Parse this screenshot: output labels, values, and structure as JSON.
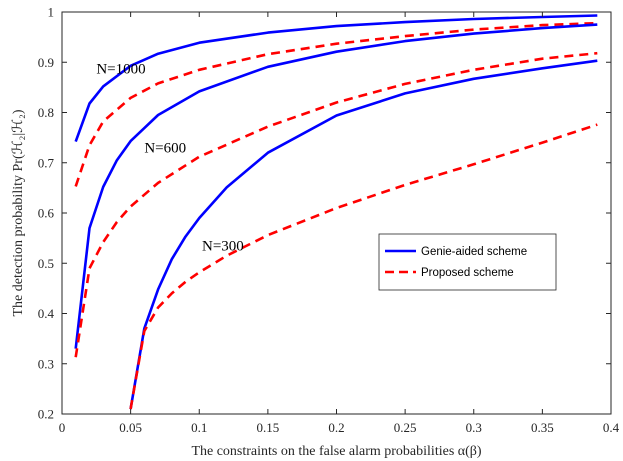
{
  "chart_data": {
    "type": "line",
    "xlabel": "The constraints on the false alarm probabilities α(β)",
    "ylabel": "The detection probability Pr(ℋ₂|ℋ₂)",
    "xlim": [
      0,
      0.4
    ],
    "ylim": [
      0.2,
      1.0
    ],
    "xticks": [
      0,
      0.05,
      0.1,
      0.15,
      0.2,
      0.25,
      0.3,
      0.35,
      0.4
    ],
    "xtick_labels": [
      "0",
      "0.05",
      "0.1",
      "0.15",
      "0.2",
      "0.25",
      "0.3",
      "0.35",
      "0.4"
    ],
    "yticks": [
      0.2,
      0.3,
      0.4,
      0.5,
      0.6,
      0.7,
      0.8,
      0.9,
      1.0
    ],
    "ytick_labels": [
      "0.2",
      "0.3",
      "0.4",
      "0.5",
      "0.6",
      "0.7",
      "0.8",
      "0.9",
      "1"
    ],
    "grid": false,
    "legend_position": "center-right",
    "legend": [
      {
        "label": "Genie-aided scheme",
        "color": "#0000ff",
        "style": "solid"
      },
      {
        "label": "Proposed scheme",
        "color": "#ff0000",
        "style": "dashed"
      }
    ],
    "annotations": [
      {
        "text": "N=1000",
        "x": 0.025,
        "y": 0.878
      },
      {
        "text": "N=600",
        "x": 0.06,
        "y": 0.72
      },
      {
        "text": "N=300",
        "x": 0.102,
        "y": 0.525
      }
    ],
    "series": [
      {
        "group": "N=1000",
        "scheme": "genie",
        "color": "#0000ff",
        "dash": false,
        "x": [
          0.01,
          0.02,
          0.03,
          0.05,
          0.07,
          0.1,
          0.15,
          0.2,
          0.25,
          0.3,
          0.35,
          0.39
        ],
        "y": [
          0.742,
          0.818,
          0.852,
          0.893,
          0.917,
          0.939,
          0.959,
          0.972,
          0.98,
          0.986,
          0.99,
          0.993
        ]
      },
      {
        "group": "N=1000",
        "scheme": "proposed",
        "color": "#ff0000",
        "dash": true,
        "x": [
          0.01,
          0.02,
          0.03,
          0.05,
          0.07,
          0.1,
          0.15,
          0.2,
          0.25,
          0.3,
          0.35,
          0.39
        ],
        "y": [
          0.653,
          0.735,
          0.782,
          0.829,
          0.858,
          0.885,
          0.916,
          0.937,
          0.952,
          0.965,
          0.974,
          0.978
        ]
      },
      {
        "group": "N=600",
        "scheme": "genie",
        "color": "#0000ff",
        "dash": false,
        "x": [
          0.01,
          0.02,
          0.03,
          0.04,
          0.05,
          0.07,
          0.1,
          0.15,
          0.2,
          0.25,
          0.3,
          0.35,
          0.39
        ],
        "y": [
          0.33,
          0.57,
          0.652,
          0.705,
          0.743,
          0.795,
          0.842,
          0.891,
          0.921,
          0.942,
          0.957,
          0.968,
          0.975
        ]
      },
      {
        "group": "N=600",
        "scheme": "proposed",
        "color": "#ff0000",
        "dash": true,
        "x": [
          0.01,
          0.02,
          0.03,
          0.04,
          0.05,
          0.07,
          0.1,
          0.15,
          0.2,
          0.25,
          0.3,
          0.35,
          0.39
        ],
        "y": [
          0.313,
          0.49,
          0.542,
          0.582,
          0.613,
          0.66,
          0.712,
          0.772,
          0.82,
          0.857,
          0.885,
          0.907,
          0.918
        ]
      },
      {
        "group": "N=300",
        "scheme": "genie",
        "color": "#0000ff",
        "dash": false,
        "x": [
          0.05,
          0.06,
          0.07,
          0.08,
          0.09,
          0.1,
          0.12,
          0.15,
          0.2,
          0.25,
          0.3,
          0.35,
          0.39
        ],
        "y": [
          0.21,
          0.37,
          0.448,
          0.508,
          0.553,
          0.59,
          0.651,
          0.72,
          0.794,
          0.838,
          0.867,
          0.888,
          0.903
        ]
      },
      {
        "group": "N=300",
        "scheme": "proposed",
        "color": "#ff0000",
        "dash": true,
        "x": [
          0.05,
          0.06,
          0.07,
          0.08,
          0.09,
          0.1,
          0.12,
          0.15,
          0.2,
          0.25,
          0.3,
          0.35,
          0.39
        ],
        "y": [
          0.21,
          0.365,
          0.412,
          0.44,
          0.463,
          0.482,
          0.515,
          0.556,
          0.61,
          0.656,
          0.697,
          0.74,
          0.776
        ]
      }
    ]
  }
}
